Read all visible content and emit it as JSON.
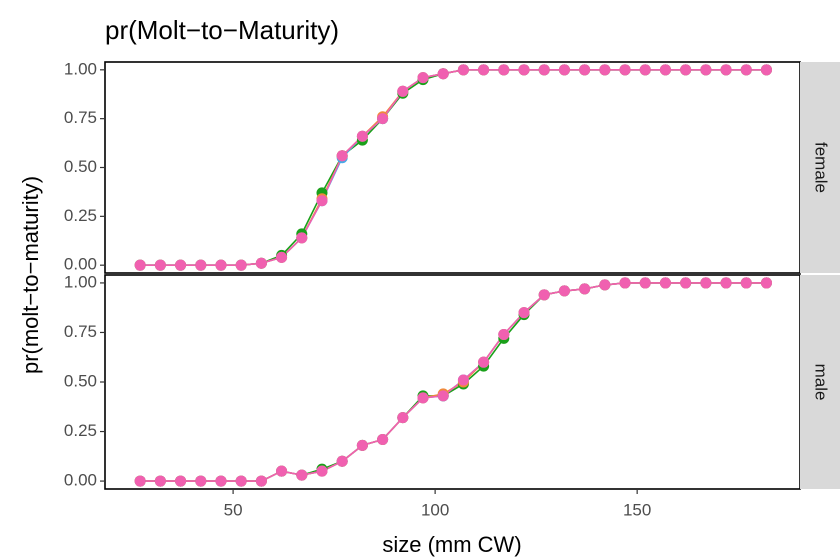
{
  "chart_data": [
    {
      "type": "line",
      "title": "pr(Molt−to−Maturity)",
      "ylabel": "pr(molt−to−maturity)",
      "facet": "female",
      "x": [
        27,
        32,
        37,
        42,
        47,
        52,
        57,
        62,
        67,
        72,
        77,
        82,
        87,
        92,
        97,
        102,
        107,
        112,
        117,
        122,
        127,
        132,
        137,
        142,
        147,
        152,
        157,
        162,
        167,
        172,
        177,
        182
      ],
      "xlim": [
        18.3,
        190.3
      ],
      "ylim": [
        -0.04,
        1.04
      ],
      "yticks": [
        {
          "value": 0,
          "label": "0.00"
        },
        {
          "value": 0.25,
          "label": "0.25"
        },
        {
          "value": 0.5,
          "label": "0.50"
        },
        {
          "value": 0.75,
          "label": "0.75"
        },
        {
          "value": 1,
          "label": "1.00"
        }
      ],
      "series": [
        {
          "color": "#1aa01a",
          "values": [
            0,
            0,
            0,
            0,
            0,
            0,
            0.01,
            0.05,
            0.16,
            0.37,
            0.56,
            0.64,
            0.75,
            0.88,
            0.95,
            0.98,
            1,
            1,
            1,
            1,
            1,
            1,
            1,
            1,
            1,
            1,
            1,
            1,
            1,
            1,
            1,
            1
          ]
        },
        {
          "color": "#4aa8e8",
          "values": [
            0,
            0,
            0,
            0,
            0,
            0,
            0.01,
            0.04,
            0.14,
            0.33,
            0.55,
            0.66,
            0.75,
            0.89,
            0.96,
            0.98,
            1,
            1,
            1,
            1,
            1,
            1,
            1,
            1,
            1,
            1,
            1,
            1,
            1,
            1,
            1,
            1
          ]
        },
        {
          "color": "#f08a3c",
          "values": [
            0,
            0,
            0,
            0,
            0,
            0,
            0.01,
            0.04,
            0.14,
            0.34,
            0.56,
            0.66,
            0.76,
            0.89,
            0.96,
            0.98,
            1,
            1,
            1,
            1,
            1,
            1,
            1,
            1,
            1,
            1,
            1,
            1,
            1,
            1,
            1,
            1
          ]
        },
        {
          "color": "#f060b0",
          "values": [
            0,
            0,
            0,
            0,
            0,
            0,
            0.01,
            0.04,
            0.14,
            0.33,
            0.56,
            0.66,
            0.75,
            0.89,
            0.96,
            0.98,
            1,
            1,
            1,
            1,
            1,
            1,
            1,
            1,
            1,
            1,
            1,
            1,
            1,
            1,
            1,
            1
          ]
        }
      ]
    },
    {
      "type": "line",
      "xlabel": "size (mm CW)",
      "facet": "male",
      "x": [
        27,
        32,
        37,
        42,
        47,
        52,
        57,
        62,
        67,
        72,
        77,
        82,
        87,
        92,
        97,
        102,
        107,
        112,
        117,
        122,
        127,
        132,
        137,
        142,
        147,
        152,
        157,
        162,
        167,
        172,
        177,
        182
      ],
      "xlim": [
        18.3,
        190.3
      ],
      "ylim": [
        -0.04,
        1.04
      ],
      "xticks": [
        50,
        100,
        150
      ],
      "yticks": [
        {
          "value": 0,
          "label": "0.00"
        },
        {
          "value": 0.25,
          "label": "0.25"
        },
        {
          "value": 0.5,
          "label": "0.50"
        },
        {
          "value": 0.75,
          "label": "0.75"
        },
        {
          "value": 1,
          "label": "1.00"
        }
      ],
      "series": [
        {
          "color": "#1aa01a",
          "values": [
            0,
            0,
            0,
            0,
            0,
            0,
            0,
            0.05,
            0.03,
            0.06,
            0.1,
            0.18,
            0.21,
            0.32,
            0.43,
            0.43,
            0.49,
            0.58,
            0.72,
            0.84,
            0.94,
            0.96,
            0.97,
            0.99,
            1,
            1,
            1,
            1,
            1,
            1,
            1,
            1
          ]
        },
        {
          "color": "#4aa8e8",
          "values": [
            0,
            0,
            0,
            0,
            0,
            0,
            0,
            0.05,
            0.03,
            0.05,
            0.1,
            0.18,
            0.21,
            0.32,
            0.42,
            0.43,
            0.51,
            0.6,
            0.74,
            0.85,
            0.94,
            0.96,
            0.97,
            0.99,
            1,
            1,
            1,
            1,
            1,
            1,
            1,
            1
          ]
        },
        {
          "color": "#f08a3c",
          "values": [
            0,
            0,
            0,
            0,
            0,
            0,
            0,
            0.05,
            0.03,
            0.05,
            0.1,
            0.18,
            0.21,
            0.32,
            0.42,
            0.44,
            0.5,
            0.6,
            0.74,
            0.85,
            0.94,
            0.96,
            0.97,
            0.99,
            1,
            1,
            1,
            1,
            1,
            1,
            1,
            1
          ]
        },
        {
          "color": "#f060b0",
          "values": [
            0,
            0,
            0,
            0,
            0,
            0,
            0,
            0.05,
            0.03,
            0.05,
            0.1,
            0.18,
            0.21,
            0.32,
            0.42,
            0.43,
            0.51,
            0.6,
            0.74,
            0.85,
            0.94,
            0.96,
            0.97,
            0.99,
            1,
            1,
            1,
            1,
            1,
            1,
            1,
            1
          ]
        }
      ]
    }
  ]
}
